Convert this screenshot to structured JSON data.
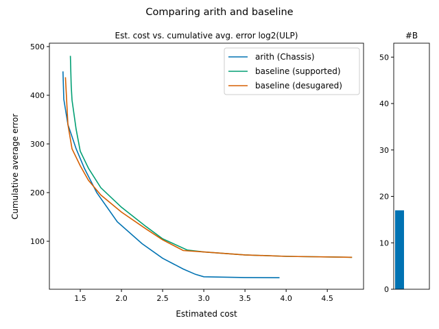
{
  "chart_data": [
    {
      "type": "line",
      "suptitle": "Comparing arith and baseline",
      "title": "Est. cost vs. cumulative avg. error log2(ULP)",
      "xlabel": "Estimated cost",
      "ylabel": "Cumulative average error",
      "xlim": [
        1.125,
        4.94
      ],
      "ylim": [
        1.4,
        507
      ],
      "xticks": [
        1.5,
        2.0,
        2.5,
        3.0,
        3.5,
        4.0,
        4.5
      ],
      "xtick_labels": [
        "1.5",
        "2.0",
        "2.5",
        "3.0",
        "3.5",
        "4.0",
        "4.5"
      ],
      "yticks": [
        100,
        200,
        300,
        400,
        500
      ],
      "ytick_labels": [
        "100",
        "200",
        "300",
        "400",
        "500"
      ],
      "legend_position": "top-right",
      "series": [
        {
          "name": "arith (Chassis)",
          "color": "#0072b2",
          "x": [
            1.29,
            1.3,
            1.35,
            1.45,
            1.55,
            1.7,
            1.95,
            2.25,
            2.5,
            2.75,
            2.9,
            3.0,
            3.5,
            3.92
          ],
          "y": [
            449,
            392,
            340,
            290,
            250,
            200,
            140,
            95,
            65,
            43,
            32,
            27,
            25.5,
            25
          ]
        },
        {
          "name": "baseline (supported)",
          "color": "#009e73",
          "x": [
            1.38,
            1.39,
            1.4,
            1.45,
            1.5,
            1.6,
            1.75,
            2.0,
            2.3,
            2.5,
            2.8,
            3.0,
            3.5,
            4.0,
            4.8
          ],
          "y": [
            481,
            420,
            390,
            330,
            285,
            250,
            210,
            170,
            130,
            105,
            82,
            78,
            72,
            69,
            67
          ]
        },
        {
          "name": "baseline (desugared)",
          "color": "#d55e00",
          "x": [
            1.32,
            1.35,
            1.4,
            1.5,
            1.6,
            1.75,
            2.0,
            2.3,
            2.5,
            2.75,
            3.0,
            3.5,
            4.0,
            4.8
          ],
          "y": [
            437,
            340,
            290,
            255,
            225,
            195,
            160,
            125,
            103,
            81,
            78,
            72,
            69,
            67
          ]
        }
      ]
    },
    {
      "type": "bar",
      "title": "#B",
      "categories": [
        ""
      ],
      "values": [
        17
      ],
      "color": "#0072b2",
      "ylim": [
        0,
        53
      ],
      "yticks": [
        0,
        10,
        20,
        30,
        40,
        50
      ],
      "ytick_labels": [
        "0",
        "10",
        "20",
        "30",
        "40",
        "50"
      ]
    }
  ]
}
